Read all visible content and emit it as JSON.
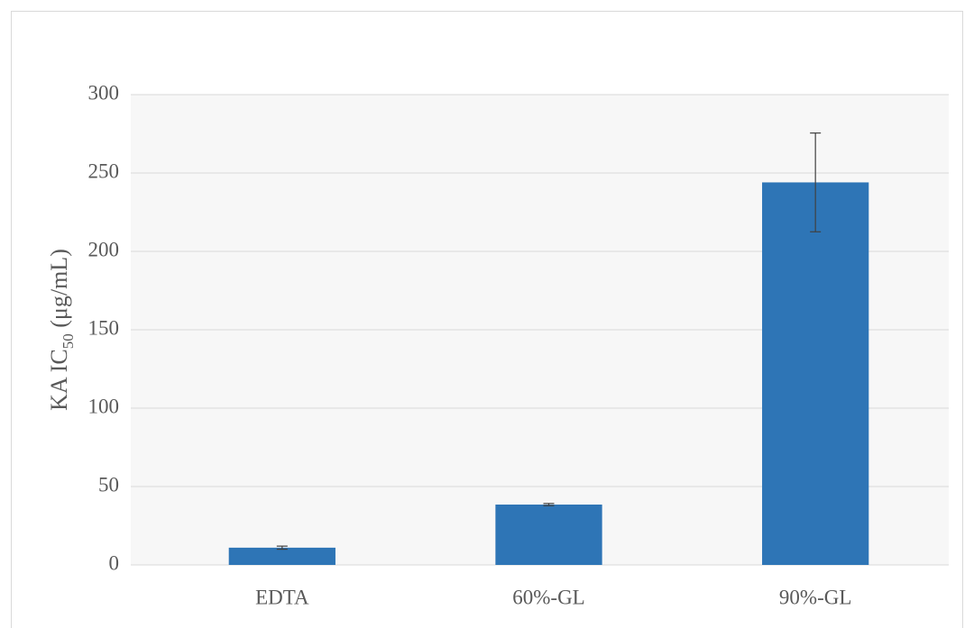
{
  "chart_data": {
    "type": "bar",
    "ylabel": [
      {
        "text": "KA IC"
      },
      {
        "text": "50",
        "sub": true
      },
      {
        "text": " (μg/mL)"
      }
    ],
    "categories": [
      "EDTA",
      "60%-GL",
      "90%-GL"
    ],
    "values": [
      11,
      38.5,
      244
    ],
    "errors": [
      1,
      0.7,
      31.5
    ],
    "color": "#2e75b6",
    "ylim": [
      0,
      300
    ],
    "yticks": [
      0,
      50,
      100,
      150,
      200,
      250,
      300
    ],
    "grid": true
  }
}
